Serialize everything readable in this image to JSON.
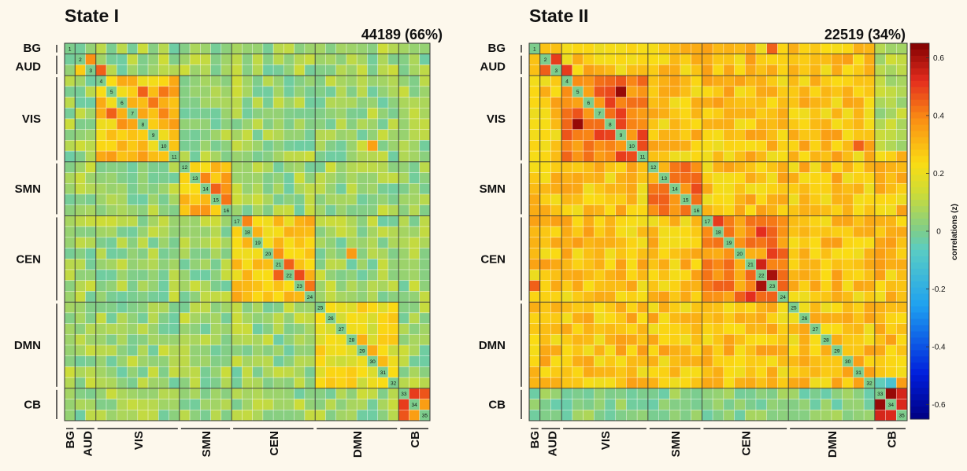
{
  "chart_data": [
    {
      "type": "heatmap",
      "title": "State I",
      "subtitle": "44189 (66%)",
      "n_components": 35,
      "diagonal_labels": [
        "1",
        "2",
        "3",
        "4",
        "5",
        "6",
        "7",
        "8",
        "9",
        "10",
        "11",
        "12",
        "13",
        "14",
        "15",
        "16",
        "17",
        "18",
        "19",
        "20",
        "21",
        "22",
        "23",
        "24",
        "25",
        "26",
        "27",
        "28",
        "29",
        "30",
        "31",
        "32",
        "33",
        "34",
        "35"
      ],
      "networks": [
        {
          "name": "BG",
          "start": 1,
          "end": 1
        },
        {
          "name": "AUD",
          "start": 2,
          "end": 3
        },
        {
          "name": "VIS",
          "start": 4,
          "end": 11
        },
        {
          "name": "SMN",
          "start": 12,
          "end": 16
        },
        {
          "name": "CEN",
          "start": 17,
          "end": 24
        },
        {
          "name": "DMN",
          "start": 25,
          "end": 32
        },
        {
          "name": "CB",
          "start": 33,
          "end": 35
        }
      ],
      "within_network_correlation": {
        "BG": 0.15,
        "AUD": 0.3,
        "VIS": 0.28,
        "SMN": 0.3,
        "CEN": 0.27,
        "DMN": 0.2,
        "CB": 0.4
      },
      "between_network_correlation": 0.05,
      "highlights": [
        {
          "row": 2,
          "col": 3,
          "value": 0.38
        },
        {
          "row": 3,
          "col": 4,
          "value": 0.45
        },
        {
          "row": 5,
          "col": 8,
          "value": 0.45
        },
        {
          "row": 5,
          "col": 10,
          "value": 0.42
        },
        {
          "row": 6,
          "col": 9,
          "value": 0.42
        },
        {
          "row": 7,
          "col": 5,
          "value": 0.45
        },
        {
          "row": 7,
          "col": 10,
          "value": 0.4
        },
        {
          "row": 8,
          "col": 6,
          "value": 0.38
        },
        {
          "row": 14,
          "col": 15,
          "value": 0.45
        },
        {
          "row": 15,
          "col": 16,
          "value": 0.42
        },
        {
          "row": 13,
          "col": 14,
          "value": 0.4
        },
        {
          "row": 17,
          "col": 18,
          "value": 0.4
        },
        {
          "row": 21,
          "col": 22,
          "value": 0.45
        },
        {
          "row": 22,
          "col": 23,
          "value": 0.48
        },
        {
          "row": 23,
          "col": 24,
          "value": 0.42
        },
        {
          "row": 20,
          "col": 21,
          "value": 0.38
        },
        {
          "row": 22,
          "col": 21,
          "value": 0.45
        },
        {
          "row": 33,
          "col": 34,
          "value": 0.5
        },
        {
          "row": 34,
          "col": 33,
          "value": 0.5
        },
        {
          "row": 10,
          "col": 30,
          "value": 0.35
        },
        {
          "row": 20,
          "col": 28,
          "value": 0.36
        },
        {
          "row": 28,
          "col": 29,
          "value": 0.32
        },
        {
          "row": 30,
          "col": 31,
          "value": 0.3
        },
        {
          "row": 29,
          "col": 30,
          "value": 0.33
        }
      ]
    },
    {
      "type": "heatmap",
      "title": "State II",
      "subtitle": "22519 (34%)",
      "n_components": 35,
      "diagonal_labels": [
        "1",
        "2",
        "3",
        "4",
        "5",
        "6",
        "7",
        "8",
        "9",
        "10",
        "11",
        "12",
        "13",
        "14",
        "15",
        "16",
        "17",
        "18",
        "19",
        "20",
        "21",
        "22",
        "23",
        "24",
        "25",
        "26",
        "27",
        "28",
        "29",
        "30",
        "31",
        "32",
        "33",
        "34",
        "35"
      ],
      "networks": [
        {
          "name": "BG",
          "start": 1,
          "end": 1
        },
        {
          "name": "AUD",
          "start": 2,
          "end": 3
        },
        {
          "name": "VIS",
          "start": 4,
          "end": 11
        },
        {
          "name": "SMN",
          "start": 12,
          "end": 16
        },
        {
          "name": "CEN",
          "start": 17,
          "end": 24
        },
        {
          "name": "DMN",
          "start": 25,
          "end": 32
        },
        {
          "name": "CB",
          "start": 33,
          "end": 35
        }
      ],
      "within_network_correlation": {
        "BG": 0.3,
        "AUD": 0.45,
        "VIS": 0.42,
        "SMN": 0.38,
        "CEN": 0.38,
        "DMN": 0.28,
        "CB": 0.5
      },
      "between_network_correlation": 0.28,
      "highlights": [
        {
          "row": 2,
          "col": 3,
          "value": 0.5
        },
        {
          "row": 3,
          "col": 4,
          "value": 0.5
        },
        {
          "row": 5,
          "col": 9,
          "value": 0.62
        },
        {
          "row": 8,
          "col": 5,
          "value": 0.62
        },
        {
          "row": 6,
          "col": 8,
          "value": 0.5
        },
        {
          "row": 14,
          "col": 16,
          "value": 0.48
        },
        {
          "row": 15,
          "col": 13,
          "value": 0.45
        },
        {
          "row": 17,
          "col": 18,
          "value": 0.5
        },
        {
          "row": 18,
          "col": 22,
          "value": 0.52
        },
        {
          "row": 21,
          "col": 22,
          "value": 0.55
        },
        {
          "row": 22,
          "col": 23,
          "value": 0.6
        },
        {
          "row": 23,
          "col": 22,
          "value": 0.6
        },
        {
          "row": 24,
          "col": 21,
          "value": 0.52
        },
        {
          "row": 20,
          "col": 23,
          "value": 0.5
        },
        {
          "row": 33,
          "col": 34,
          "value": 0.62
        },
        {
          "row": 34,
          "col": 33,
          "value": 0.62
        },
        {
          "row": 1,
          "col": 23,
          "value": 0.45
        },
        {
          "row": 23,
          "col": 1,
          "value": 0.45
        },
        {
          "row": 10,
          "col": 31,
          "value": 0.45
        }
      ],
      "low_patches": [
        {
          "row_start": 1,
          "col_start": 33,
          "row_end": 10,
          "col_end": 35,
          "value": 0.08
        },
        {
          "row_start": 33,
          "col_start": 1,
          "row_end": 35,
          "col_end": 32,
          "value": 0.02
        },
        {
          "row_start": 32,
          "col_start": 33,
          "row_end": 32,
          "col_end": 34,
          "value": -0.1
        }
      ]
    }
  ],
  "colorbar": {
    "label": "correlations (z)",
    "ticks": [
      "0.6",
      "0.4",
      "0.2",
      "0",
      "-0.2",
      "-0.4",
      "-0.6"
    ],
    "tick_values": [
      0.6,
      0.4,
      0.2,
      0,
      -0.2,
      -0.4,
      -0.6
    ],
    "range": [
      -0.65,
      0.65
    ]
  }
}
